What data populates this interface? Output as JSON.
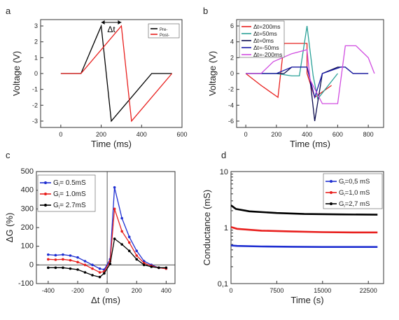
{
  "chart_data": [
    {
      "panel": "a",
      "type": "line",
      "xlabel": "Time (ms)",
      "ylabel": "Voltage (V)",
      "xlim": [
        -100,
        600
      ],
      "ylim": [
        -3.4,
        3.4
      ],
      "xticks": [
        0,
        200,
        400,
        600
      ],
      "yticks": [
        -3,
        -2,
        -1,
        0,
        1,
        2,
        3
      ],
      "annotation": "Δt",
      "legend_position": "top-right",
      "series": [
        {
          "name": "Pre-",
          "color": "#000000",
          "x": [
            0,
            100,
            200,
            250,
            450,
            550
          ],
          "y": [
            0,
            0,
            3,
            -3,
            0,
            0
          ]
        },
        {
          "name": "Post-",
          "color": "#e8201e",
          "x": [
            0,
            100,
            300,
            350,
            550
          ],
          "y": [
            0,
            0,
            3,
            -3,
            0
          ]
        }
      ]
    },
    {
      "panel": "b",
      "type": "line",
      "xlabel": "Time (ms)",
      "ylabel": "Voltage (V)",
      "xlim": [
        -60,
        900
      ],
      "ylim": [
        -6.8,
        6.8
      ],
      "xticks": [
        0,
        200,
        400,
        600,
        800
      ],
      "yticks": [
        -6,
        -4,
        -2,
        0,
        2,
        4,
        6
      ],
      "legend_position": "top-left",
      "series": [
        {
          "name": "Δt=200ms",
          "color": "#e8201e",
          "x": [
            0,
            100,
            210,
            250,
            400,
            400,
            450,
            560
          ],
          "y": [
            0,
            -1.5,
            -3,
            3.8,
            3.8,
            0,
            -3,
            -1.5
          ]
        },
        {
          "name": "Δt=50ms",
          "color": "#2aa198",
          "x": [
            0,
            200,
            300,
            350,
            400,
            440,
            470,
            600
          ],
          "y": [
            0,
            0,
            -0.3,
            -0.3,
            6,
            -0.3,
            -3.2,
            0
          ]
        },
        {
          "name": "Δt=0ms",
          "color": "#0b0b4d",
          "x": [
            0,
            250,
            300,
            400,
            420,
            450,
            500,
            600,
            650,
            700,
            800
          ],
          "y": [
            0,
            0,
            0.8,
            0.8,
            -0.8,
            -6,
            0,
            0.8,
            0.8,
            0,
            0
          ]
        },
        {
          "name": "Δt=-50ms",
          "color": "#1a1aa8",
          "x": [
            0,
            200,
            300,
            400,
            450,
            500,
            620,
            650,
            700,
            800
          ],
          "y": [
            0,
            0,
            0.8,
            0.8,
            -3,
            0,
            0.8,
            0.8,
            0,
            0
          ]
        },
        {
          "name": "Δt=-200ms",
          "color": "#d04ce0",
          "x": [
            0,
            100,
            180,
            300,
            400,
            420,
            500,
            600,
            650,
            720,
            800,
            840
          ],
          "y": [
            0,
            0,
            1.5,
            2.5,
            3,
            -0.8,
            -3.8,
            -3.8,
            3.5,
            3.5,
            2,
            0
          ]
        }
      ]
    },
    {
      "panel": "c",
      "type": "line",
      "xlabel": "Δt (ms)",
      "ylabel": "ΔG (%)",
      "xlim": [
        -480,
        460
      ],
      "ylim": [
        -100,
        500
      ],
      "xticks": [
        -400,
        -200,
        0,
        200,
        400
      ],
      "yticks": [
        -100,
        0,
        100,
        200,
        300,
        400,
        500
      ],
      "legend_position": "top-left",
      "series": [
        {
          "name": "G = 0.5mS",
          "legend_text": "= 0.5mS",
          "color": "#1f2fd1",
          "x": [
            -400,
            -350,
            -300,
            -250,
            -200,
            -150,
            -100,
            -50,
            -20,
            20,
            50,
            100,
            150,
            200,
            250,
            300,
            350,
            400
          ],
          "y": [
            55,
            52,
            55,
            50,
            40,
            20,
            0,
            -20,
            -25,
            30,
            415,
            250,
            150,
            75,
            20,
            0,
            -15,
            -20
          ]
        },
        {
          "name": "G = 1.0mS",
          "legend_text": "= 1.0mS",
          "color": "#e8201e",
          "x": [
            -400,
            -350,
            -300,
            -250,
            -200,
            -150,
            -100,
            -50,
            -20,
            20,
            50,
            100,
            150,
            200,
            250,
            300,
            350,
            400
          ],
          "y": [
            30,
            28,
            30,
            25,
            15,
            0,
            -20,
            -40,
            -35,
            20,
            300,
            180,
            120,
            50,
            10,
            -5,
            -15,
            -20
          ]
        },
        {
          "name": "G = 2.7mS",
          "legend_text": "= 2.7mS",
          "color": "#000000",
          "x": [
            -400,
            -350,
            -300,
            -250,
            -200,
            -150,
            -100,
            -50,
            -20,
            20,
            50,
            100,
            150,
            200,
            250,
            300,
            350,
            400
          ],
          "y": [
            -15,
            -15,
            -15,
            -20,
            -25,
            -40,
            -55,
            -65,
            -45,
            5,
            140,
            110,
            75,
            30,
            0,
            -10,
            -15,
            -15
          ]
        }
      ]
    },
    {
      "panel": "d",
      "type": "line",
      "xlabel": "Time (s)",
      "ylabel": "Conductance (mS)",
      "xlim": [
        0,
        25000
      ],
      "ylim": [
        0.1,
        10
      ],
      "yscale": "log",
      "xticks": [
        0,
        7500,
        15000,
        22500
      ],
      "ytick_labels": [
        "0,1",
        "1",
        "10"
      ],
      "legend_position": "top-right",
      "series": [
        {
          "name": "G = 0,5 mS",
          "legend_text": "=0,5 mS",
          "color": "#1f2fd1",
          "x": [
            0,
            1000,
            5000,
            10000,
            15000,
            20000,
            24000
          ],
          "y": [
            0.48,
            0.47,
            0.46,
            0.455,
            0.45,
            0.45,
            0.45
          ]
        },
        {
          "name": "G = 1,0 mS",
          "legend_text": "=1,0 mS",
          "color": "#e8201e",
          "x": [
            0,
            1000,
            5000,
            10000,
            15000,
            20000,
            24000
          ],
          "y": [
            1.02,
            0.95,
            0.88,
            0.85,
            0.83,
            0.82,
            0.82
          ]
        },
        {
          "name": "G = 2,7 mS",
          "legend_text": "=2,7 mS",
          "color": "#000000",
          "x": [
            0,
            800,
            3000,
            7500,
            12000,
            18000,
            24000
          ],
          "y": [
            2.5,
            2.15,
            1.95,
            1.82,
            1.75,
            1.72,
            1.7
          ]
        }
      ]
    }
  ]
}
